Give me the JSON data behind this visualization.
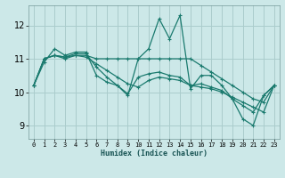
{
  "xlabel": "Humidex (Indice chaleur)",
  "background_color": "#cce8e8",
  "grid_color": "#aacccc",
  "line_color": "#1a7a6e",
  "xlim": [
    -0.5,
    23.5
  ],
  "ylim": [
    8.6,
    12.6
  ],
  "yticks": [
    9,
    10,
    11,
    12
  ],
  "xtick_labels": [
    "0",
    "1",
    "2",
    "3",
    "4",
    "5",
    "6",
    "7",
    "8",
    "9",
    "10",
    "11",
    "12",
    "13",
    "14",
    "15",
    "16",
    "17",
    "18",
    "19",
    "20",
    "21",
    "22",
    "23"
  ],
  "series": [
    [
      10.2,
      10.9,
      11.3,
      11.1,
      11.2,
      11.2,
      10.5,
      10.3,
      10.2,
      9.9,
      11.0,
      11.3,
      12.2,
      11.6,
      12.3,
      10.1,
      10.5,
      10.5,
      10.2,
      9.8,
      9.2,
      9.0,
      9.9,
      10.2
    ],
    [
      10.2,
      11.0,
      11.1,
      11.0,
      11.1,
      11.1,
      11.0,
      11.0,
      11.0,
      11.0,
      11.0,
      11.0,
      11.0,
      11.0,
      11.0,
      11.0,
      10.8,
      10.6,
      10.4,
      10.2,
      10.0,
      9.8,
      9.7,
      10.2
    ],
    [
      10.2,
      11.0,
      11.1,
      11.05,
      11.1,
      11.05,
      10.85,
      10.65,
      10.45,
      10.25,
      10.15,
      10.35,
      10.45,
      10.4,
      10.35,
      10.2,
      10.15,
      10.1,
      10.0,
      9.85,
      9.7,
      9.55,
      9.4,
      10.2
    ],
    [
      10.2,
      11.0,
      11.1,
      11.05,
      11.15,
      11.15,
      10.75,
      10.45,
      10.2,
      9.95,
      10.45,
      10.55,
      10.6,
      10.5,
      10.45,
      10.2,
      10.25,
      10.15,
      10.05,
      9.8,
      9.6,
      9.4,
      9.9,
      10.2
    ]
  ],
  "xlabel_fontsize": 6,
  "xtick_fontsize": 5,
  "ytick_fontsize": 7
}
